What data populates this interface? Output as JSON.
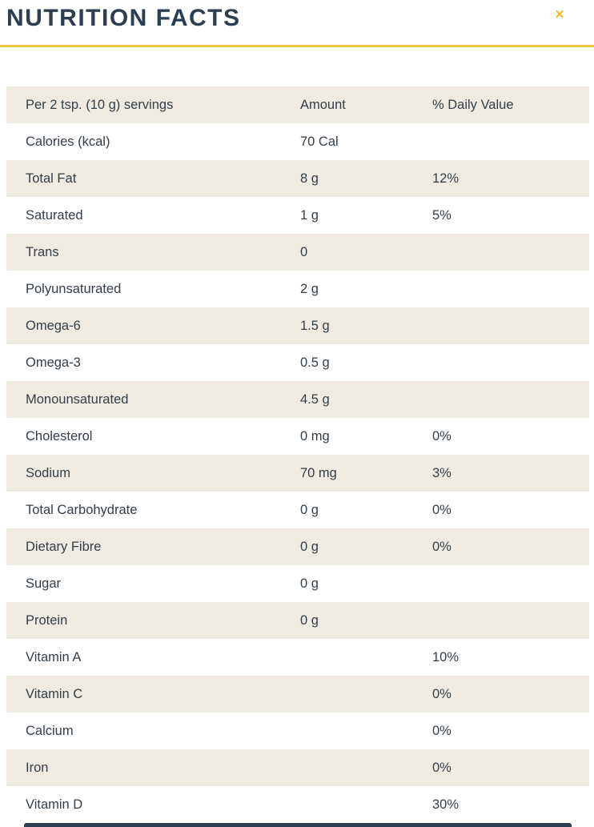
{
  "header": {
    "title": "NUTRITION FACTS",
    "close_label": "×"
  },
  "colors": {
    "navy": "#2d3e52",
    "body_text": "#333e48",
    "row_shade_beige": "#efebe3",
    "accent_yellow": "#ecc73b",
    "close_gold": "#f0b82a"
  },
  "table": {
    "columns": [
      "Per 2 tsp. (10 g) servings",
      "Amount",
      "% Daily Value"
    ],
    "rows": [
      {
        "label": "Calories (kcal)",
        "amount": "70 Cal",
        "daily_value": ""
      },
      {
        "label": "Total Fat",
        "amount": "8 g",
        "daily_value": "12%"
      },
      {
        "label": "Saturated",
        "amount": "1 g",
        "daily_value": "5%"
      },
      {
        "label": "Trans",
        "amount": "0",
        "daily_value": ""
      },
      {
        "label": "Polyunsaturated",
        "amount": "2 g",
        "daily_value": ""
      },
      {
        "label": "Omega-6",
        "amount": "1.5 g",
        "daily_value": ""
      },
      {
        "label": "Omega-3",
        "amount": "0.5 g",
        "daily_value": ""
      },
      {
        "label": "Monounsaturated",
        "amount": "4.5 g",
        "daily_value": ""
      },
      {
        "label": "Cholesterol",
        "amount": "0 mg",
        "daily_value": "0%"
      },
      {
        "label": "Sodium",
        "amount": "70 mg",
        "daily_value": "3%"
      },
      {
        "label": "Total Carbohydrate",
        "amount": "0 g",
        "daily_value": "0%"
      },
      {
        "label": "Dietary Fibre",
        "amount": "0 g",
        "daily_value": "0%"
      },
      {
        "label": "Sugar",
        "amount": "0 g",
        "daily_value": ""
      },
      {
        "label": "Protein",
        "amount": "0 g",
        "daily_value": ""
      },
      {
        "label": "Vitamin A",
        "amount": "",
        "daily_value": "10%"
      },
      {
        "label": "Vitamin C",
        "amount": "",
        "daily_value": "0%"
      },
      {
        "label": "Calcium",
        "amount": "",
        "daily_value": "0%"
      },
      {
        "label": "Iron",
        "amount": "",
        "daily_value": "0%"
      },
      {
        "label": "Vitamin D",
        "amount": "",
        "daily_value": "30%"
      }
    ]
  }
}
